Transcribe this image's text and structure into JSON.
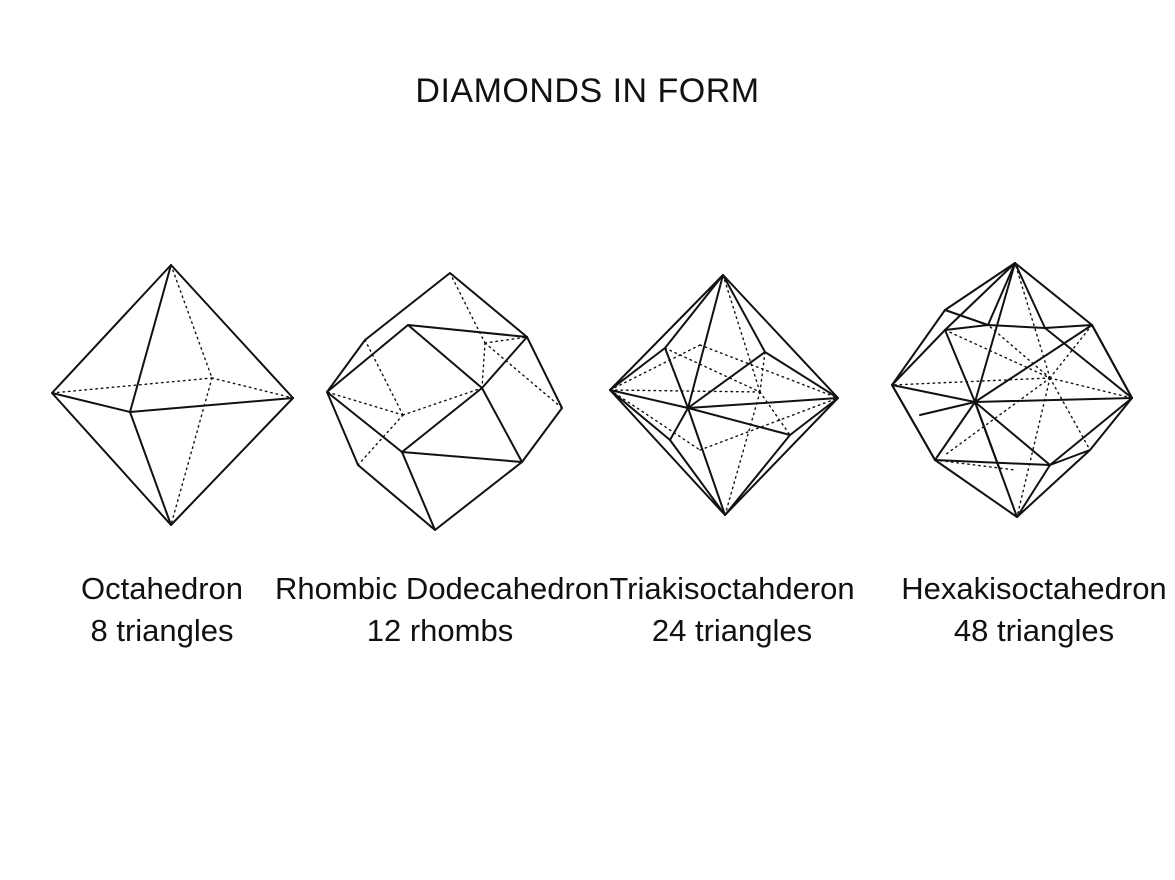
{
  "title": "DIAMONDS IN FORM",
  "shapes": [
    {
      "name": "Octahedron",
      "faces": "8 triangles"
    },
    {
      "name": "Rhombic Dodecahedron",
      "faces": "12 rhombs"
    },
    {
      "name": "Triakisoctahderon",
      "faces": "24 triangles"
    },
    {
      "name": "Hexakisoctahedron",
      "faces": "48 triangles"
    }
  ]
}
